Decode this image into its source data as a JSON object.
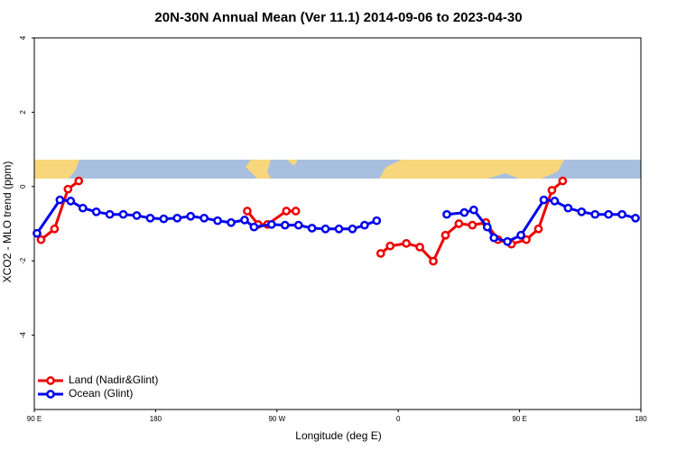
{
  "chart_data": {
    "type": "line",
    "title": "20N-30N Annual Mean (Ver 11.1)   2014-09-06 to 2023-04-30",
    "x_label": "Longitude (deg E)",
    "y_label": "XCO2 - MLO trend (ppm)",
    "xlim": [
      90,
      540
    ],
    "xticks": [
      {
        "value": 90,
        "label": "90 E"
      },
      180,
      {
        "value": 270,
        "label": "90 W"
      },
      {
        "value": 360,
        "label": "0"
      },
      {
        "value": 450,
        "label": "90 E"
      },
      180
    ],
    "ylim": [
      -6,
      4
    ],
    "yticks": [
      -4,
      -2,
      0,
      2,
      4
    ],
    "legend": "bottom-left",
    "series": [
      {
        "name": "Land (Nadir&Glint)",
        "color": "#ee0000",
        "x": [
          95,
          105,
          115,
          123,
          null,
          248,
          256,
          263,
          277,
          284,
          null,
          347,
          354,
          366,
          376,
          386,
          395,
          405,
          415,
          425,
          434,
          444,
          455,
          464,
          474,
          482
        ],
        "values": [
          -1.43,
          -1.14,
          -0.07,
          0.15,
          null,
          -0.66,
          -1.02,
          -1.02,
          -0.66,
          -0.66,
          null,
          -1.8,
          -1.6,
          -1.53,
          -1.63,
          -2.01,
          -1.31,
          -1.0,
          -1.04,
          -0.97,
          -1.43,
          -1.55,
          -1.43,
          -1.14,
          -0.1,
          0.15
        ]
      },
      {
        "name": "Ocean (Glint)",
        "color": "#0000ee",
        "x": [
          92,
          109,
          117,
          126,
          136,
          146,
          156,
          166,
          176,
          186,
          196,
          206,
          216,
          226,
          236,
          246,
          253,
          266,
          276,
          286,
          296,
          306,
          316,
          326,
          335,
          344,
          null,
          396,
          409,
          416,
          426,
          431,
          441,
          451,
          468,
          476,
          486,
          496,
          506,
          516,
          526,
          536
        ],
        "values": [
          -1.26,
          -0.36,
          -0.39,
          -0.58,
          -0.68,
          -0.75,
          -0.75,
          -0.78,
          -0.85,
          -0.87,
          -0.85,
          -0.8,
          -0.85,
          -0.92,
          -0.97,
          -0.9,
          -1.09,
          -1.02,
          -1.04,
          -1.04,
          -1.12,
          -1.14,
          -1.14,
          -1.14,
          -1.04,
          -0.92,
          null,
          -0.75,
          -0.7,
          -0.63,
          -1.09,
          -1.38,
          -1.48,
          -1.31,
          -0.36,
          -0.39,
          -0.58,
          -0.68,
          -0.75,
          -0.75,
          -0.75,
          -0.85
        ]
      }
    ]
  }
}
